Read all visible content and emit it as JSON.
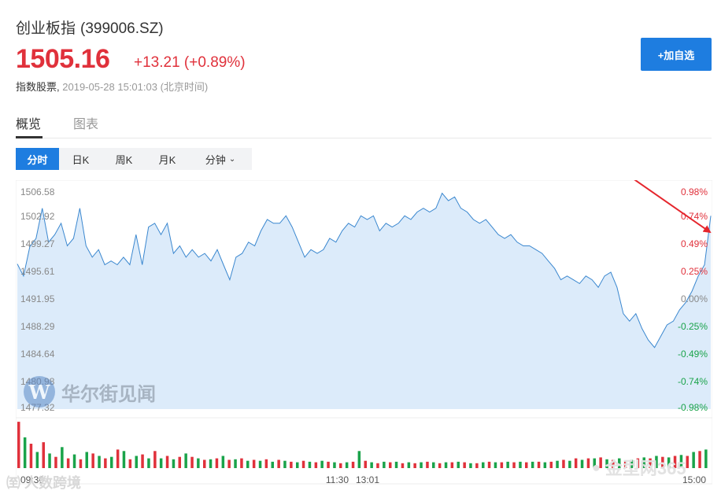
{
  "header": {
    "name": "创业板指",
    "code": "(399006.SZ)",
    "price": "1505.16",
    "change": "+13.21 (+0.89%)",
    "kind": "指数股票,",
    "timestamp": "2019-05-28 15:01:03 (北京时间)",
    "follow_label": "+加自选"
  },
  "tabs": [
    {
      "label": "概览",
      "active": true
    },
    {
      "label": "图表",
      "active": false
    }
  ],
  "periods": [
    {
      "label": "分时",
      "active": true
    },
    {
      "label": "日K",
      "active": false
    },
    {
      "label": "周K",
      "active": false
    },
    {
      "label": "月K",
      "active": false
    },
    {
      "label": "分钟",
      "active": false,
      "dropdown": true
    }
  ],
  "chart_data": {
    "type": "area",
    "y_labels_left": [
      "1506.58",
      "1502.92",
      "1499.27",
      "1495.61",
      "1491.95",
      "1488.29",
      "1484.64",
      "1480.98",
      "1477.32"
    ],
    "y_labels_right": [
      "0.98%",
      "0.74%",
      "0.49%",
      "0.25%",
      "0.00%",
      "-0.25%",
      "-0.49%",
      "-0.74%",
      "-0.98%"
    ],
    "ylim": [
      1477.32,
      1506.58
    ],
    "prev_close": 1491.95,
    "x_labels": [
      "09:30",
      "11:30",
      "13:01",
      "15:00"
    ],
    "series": [
      {
        "values": [
          1496.6,
          1495.0,
          1498.9,
          1500.0,
          1504.0,
          1499.5,
          1500.5,
          1502.0,
          1499.0,
          1500.0,
          1504.0,
          1499.0,
          1497.5,
          1498.5,
          1496.5,
          1497.0,
          1496.5,
          1497.5,
          1496.5,
          1500.5,
          1496.5,
          1501.5,
          1502.0,
          1500.5,
          1502.0,
          1498.0,
          1499.0,
          1497.5,
          1498.5,
          1497.5,
          1498.0,
          1497.0,
          1498.5,
          1496.5,
          1494.5,
          1497.5,
          1498.0,
          1499.5,
          1499.0,
          1501.0,
          1502.5,
          1502.0,
          1502.0,
          1503.0,
          1501.5,
          1499.5,
          1497.5,
          1498.5,
          1498.0,
          1498.5,
          1500.0,
          1499.5,
          1501.0,
          1502.0,
          1501.5,
          1503.0,
          1502.5,
          1503.0,
          1501.0,
          1502.0,
          1501.5,
          1502.0,
          1503.0,
          1502.5,
          1503.5,
          1504.0,
          1503.5,
          1504.0,
          1506.0,
          1505.0,
          1505.5,
          1504.0,
          1503.5,
          1502.5,
          1502.0,
          1502.5,
          1501.5,
          1500.5,
          1500.0,
          1500.5,
          1499.5,
          1499.0,
          1499.0,
          1498.5,
          1498.0,
          1497.0,
          1496.0,
          1494.5,
          1495.0,
          1494.5,
          1494.0,
          1495.0,
          1494.5,
          1493.5,
          1495.0,
          1495.5,
          1493.5,
          1490.0,
          1489.0,
          1490.0,
          1488.0,
          1486.5,
          1485.5,
          1487.0,
          1488.5,
          1489.0,
          1490.5,
          1491.5,
          1493.0,
          1495.0,
          1496.5,
          1503.0
        ]
      }
    ],
    "volume": [
      0.95,
      0.63,
      0.5,
      0.33,
      0.53,
      0.3,
      0.23,
      0.43,
      0.2,
      0.28,
      0.18,
      0.33,
      0.3,
      0.25,
      0.2,
      0.23,
      0.38,
      0.35,
      0.18,
      0.25,
      0.28,
      0.2,
      0.35,
      0.2,
      0.25,
      0.18,
      0.23,
      0.3,
      0.23,
      0.2,
      0.17,
      0.18,
      0.2,
      0.25,
      0.17,
      0.18,
      0.2,
      0.15,
      0.17,
      0.15,
      0.18,
      0.13,
      0.17,
      0.15,
      0.13,
      0.12,
      0.15,
      0.13,
      0.12,
      0.15,
      0.13,
      0.12,
      0.1,
      0.12,
      0.13,
      0.35,
      0.15,
      0.12,
      0.1,
      0.13,
      0.12,
      0.13,
      0.1,
      0.12,
      0.1,
      0.12,
      0.13,
      0.12,
      0.1,
      0.12,
      0.12,
      0.13,
      0.12,
      0.1,
      0.1,
      0.12,
      0.13,
      0.12,
      0.12,
      0.13,
      0.12,
      0.13,
      0.12,
      0.13,
      0.13,
      0.12,
      0.13,
      0.15,
      0.17,
      0.15,
      0.2,
      0.17,
      0.2,
      0.2,
      0.22,
      0.18,
      0.17,
      0.2,
      0.15,
      0.17,
      0.2,
      0.22,
      0.2,
      0.25,
      0.23,
      0.22,
      0.25,
      0.27,
      0.25,
      0.33,
      0.35,
      0.38
    ],
    "volume_colors": [
      "#e0313b",
      "#1aa34a"
    ]
  },
  "annotation": {
    "arrow_color": "#e5262d"
  },
  "watermark": {
    "brand": "华尔街见闻",
    "logo_letter": "W"
  },
  "footer_watermarks": {
    "left": "㉃ 人数跨境",
    "right": "金型网365"
  }
}
